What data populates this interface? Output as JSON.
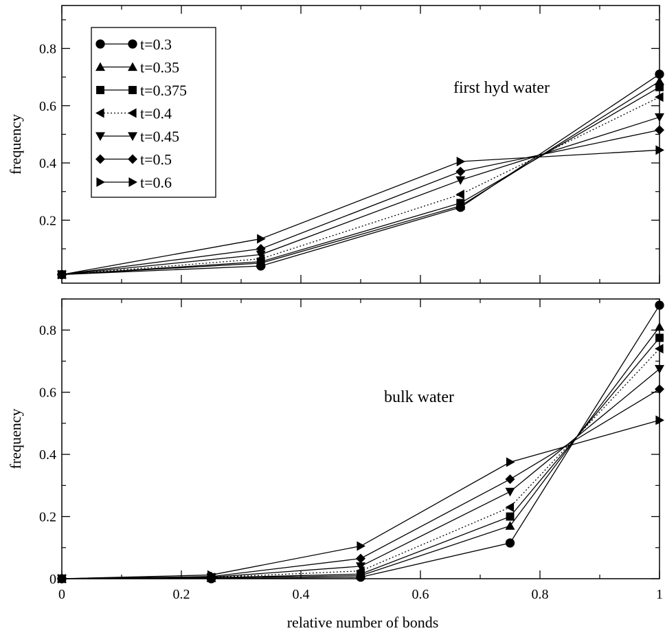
{
  "xlabel": "relative number of bonds",
  "legend": [
    {
      "label": "t=0.3",
      "marker": "circle",
      "dash": false
    },
    {
      "label": "t=0.35",
      "marker": "triangle-up",
      "dash": false
    },
    {
      "label": "t=0.375",
      "marker": "square",
      "dash": false
    },
    {
      "label": "t=0.4",
      "marker": "triangle-left",
      "dash": true
    },
    {
      "label": "t=0.45",
      "marker": "triangle-down",
      "dash": false
    },
    {
      "label": "t=0.5",
      "marker": "diamond",
      "dash": false
    },
    {
      "label": "t=0.6",
      "marker": "triangle-right",
      "dash": false
    }
  ],
  "chart_data": [
    {
      "type": "line",
      "panel": "top",
      "annotation": "first hyd water",
      "ylabel": "frequency",
      "xlim": [
        0,
        1
      ],
      "ylim": [
        -0.02,
        0.95
      ],
      "yticks": [
        0.2,
        0.4,
        0.6,
        0.8
      ],
      "ytick_labels": [
        "0.2",
        "0.4",
        "0.6",
        "0.8"
      ],
      "x": [
        0,
        0.333,
        0.667,
        1
      ],
      "series": [
        {
          "name": "t=0.3",
          "values": [
            0.01,
            0.04,
            0.245,
            0.71
          ]
        },
        {
          "name": "t=0.35",
          "values": [
            0.01,
            0.05,
            0.25,
            0.685
          ]
        },
        {
          "name": "t=0.375",
          "values": [
            0.01,
            0.055,
            0.26,
            0.665
          ]
        },
        {
          "name": "t=0.4",
          "values": [
            0.01,
            0.065,
            0.29,
            0.63
          ]
        },
        {
          "name": "t=0.45",
          "values": [
            0.01,
            0.08,
            0.34,
            0.56
          ]
        },
        {
          "name": "t=0.5",
          "values": [
            0.01,
            0.1,
            0.37,
            0.515
          ]
        },
        {
          "name": "t=0.6",
          "values": [
            0.01,
            0.135,
            0.405,
            0.445
          ]
        }
      ]
    },
    {
      "type": "line",
      "panel": "bottom",
      "annotation": "bulk water",
      "ylabel": "frequency",
      "xlim": [
        0,
        1
      ],
      "ylim": [
        0,
        0.9
      ],
      "yticks": [
        0,
        0.2,
        0.4,
        0.6,
        0.8
      ],
      "ytick_labels": [
        "0",
        "0.2",
        "0.4",
        "0.6",
        "0.8"
      ],
      "xticks": [
        0,
        0.2,
        0.4,
        0.6,
        0.8,
        1
      ],
      "xtick_labels": [
        "0",
        "0.2",
        "0.4",
        "0.6",
        "0.8",
        "1"
      ],
      "x": [
        0,
        0.25,
        0.5,
        0.75,
        1
      ],
      "series": [
        {
          "name": "t=0.3",
          "values": [
            0.0,
            0.0,
            0.005,
            0.115,
            0.88
          ]
        },
        {
          "name": "t=0.35",
          "values": [
            0.0,
            0.002,
            0.01,
            0.17,
            0.81
          ]
        },
        {
          "name": "t=0.375",
          "values": [
            0.0,
            0.003,
            0.015,
            0.2,
            0.775
          ]
        },
        {
          "name": "t=0.4",
          "values": [
            0.0,
            0.004,
            0.025,
            0.23,
            0.74
          ]
        },
        {
          "name": "t=0.45",
          "values": [
            0.0,
            0.005,
            0.04,
            0.28,
            0.675
          ]
        },
        {
          "name": "t=0.5",
          "values": [
            0.0,
            0.007,
            0.065,
            0.32,
            0.61
          ]
        },
        {
          "name": "t=0.6",
          "values": [
            0.0,
            0.012,
            0.105,
            0.375,
            0.51
          ]
        }
      ]
    }
  ]
}
